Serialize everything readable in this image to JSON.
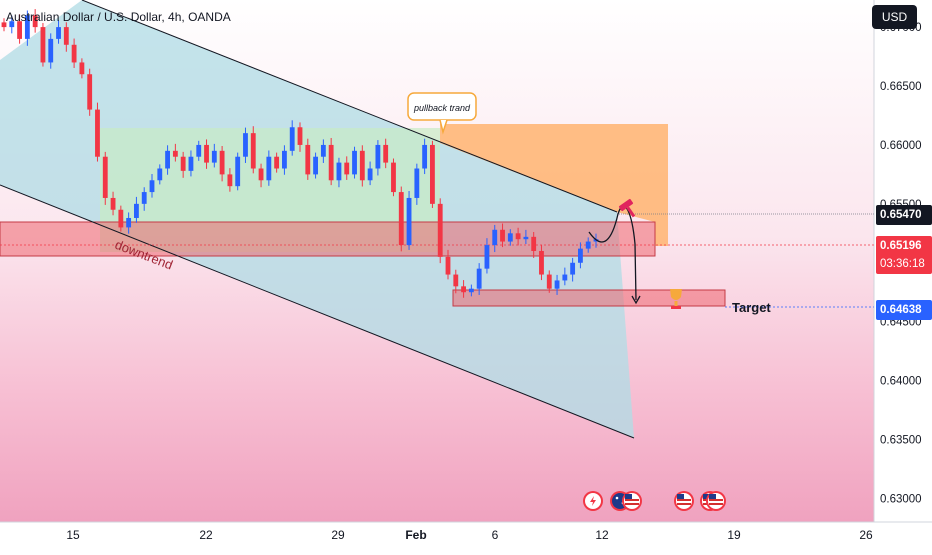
{
  "header": {
    "title": "Australian Dollar / U.S. Dollar, 4h, OANDA",
    "currency": "USD"
  },
  "chart_data": {
    "type": "candlestick",
    "symbol": "AUDUSD",
    "timeframe": "4h",
    "ylim": [
      0.628,
      0.6723
    ],
    "y_ticks": [
      "0.67000",
      "0.66500",
      "0.66000",
      "0.65500",
      "0.65000",
      "0.64500",
      "0.64000",
      "0.63500",
      "0.63000"
    ],
    "x_ticks": [
      "15",
      "22",
      "29",
      "Feb",
      "6",
      "12",
      "19",
      "26"
    ],
    "price_labels": {
      "resistance": "0.65470",
      "current_price": "0.65196",
      "countdown": "03:36:18",
      "target_price": "0.64638"
    },
    "annotations": {
      "pullback": "pullback trand",
      "downtrend": "downtrend",
      "target": "Target"
    },
    "series_path": [
      0.67,
      0.6705,
      0.669,
      0.671,
      0.67,
      0.667,
      0.669,
      0.67,
      0.6685,
      0.667,
      0.666,
      0.663,
      0.659,
      0.6555,
      0.6545,
      0.653,
      0.6538,
      0.655,
      0.656,
      0.657,
      0.658,
      0.6595,
      0.659,
      0.6578,
      0.659,
      0.66,
      0.6585,
      0.6595,
      0.6575,
      0.6565,
      0.659,
      0.661,
      0.658,
      0.657,
      0.659,
      0.658,
      0.6595,
      0.6615,
      0.66,
      0.6575,
      0.659,
      0.66,
      0.657,
      0.6585,
      0.6575,
      0.6595,
      0.657,
      0.658,
      0.66,
      0.6585,
      0.656,
      0.6515,
      0.6555,
      0.658,
      0.66,
      0.655,
      0.6505,
      0.649,
      0.648,
      0.6475,
      0.6478,
      0.6495,
      0.6515,
      0.6528,
      0.6518,
      0.6525,
      0.652,
      0.6522,
      0.651,
      0.649,
      0.6478,
      0.6485,
      0.649,
      0.65,
      0.6512,
      0.6518,
      0.652
    ]
  }
}
